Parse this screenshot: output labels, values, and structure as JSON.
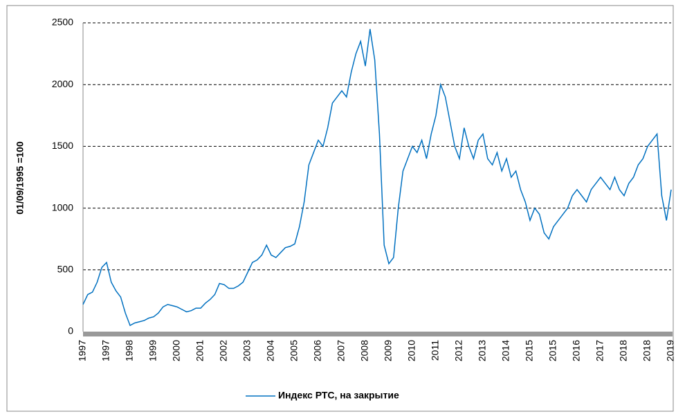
{
  "chart_data": {
    "type": "line",
    "y_label": "01/09/1995 =100",
    "categories": [
      "1997",
      null,
      null,
      null,
      null,
      "1997",
      null,
      null,
      null,
      null,
      "1998",
      null,
      null,
      null,
      null,
      "1999",
      null,
      null,
      null,
      null,
      "2000",
      null,
      null,
      null,
      null,
      "2001",
      null,
      null,
      null,
      null,
      "2002",
      null,
      null,
      null,
      null,
      "2003",
      null,
      null,
      null,
      null,
      "2004",
      null,
      null,
      null,
      null,
      "2005",
      null,
      null,
      null,
      null,
      "2006",
      null,
      null,
      null,
      null,
      "2007",
      null,
      null,
      null,
      null,
      "2008",
      null,
      null,
      null,
      null,
      "2009",
      null,
      null,
      null,
      null,
      "2010",
      null,
      null,
      null,
      null,
      "2011",
      null,
      null,
      null,
      null,
      "2012",
      null,
      null,
      null,
      null,
      "2013",
      null,
      null,
      null,
      null,
      "2014",
      null,
      null,
      null,
      null,
      "2015",
      null,
      null,
      null,
      null,
      "2015",
      null,
      null,
      null,
      null,
      "2016",
      null,
      null,
      null,
      null,
      "2017",
      null,
      null,
      null,
      null,
      "2018",
      null,
      null,
      null,
      null,
      "2018",
      null,
      null,
      null,
      null,
      "2019"
    ],
    "series": [
      {
        "name": "Индекс РТС, на закрытие",
        "color": "#0070c0",
        "values": [
          220,
          300,
          320,
          400,
          520,
          560,
          400,
          330,
          280,
          150,
          50,
          70,
          80,
          90,
          110,
          120,
          150,
          200,
          220,
          210,
          200,
          180,
          160,
          170,
          190,
          190,
          230,
          260,
          300,
          390,
          380,
          350,
          350,
          370,
          400,
          480,
          560,
          580,
          620,
          700,
          620,
          600,
          640,
          680,
          690,
          710,
          850,
          1050,
          1350,
          1450,
          1550,
          1500,
          1650,
          1850,
          1900,
          1950,
          1900,
          2100,
          2250,
          2350,
          2150,
          2450,
          2200,
          1600,
          700,
          550,
          600,
          1000,
          1300,
          1400,
          1500,
          1450,
          1550,
          1400,
          1600,
          1750,
          2000,
          1900,
          1700,
          1500,
          1400,
          1650,
          1500,
          1400,
          1550,
          1600,
          1400,
          1350,
          1450,
          1300,
          1400,
          1250,
          1300,
          1150,
          1050,
          900,
          1000,
          950,
          800,
          750,
          850,
          900,
          950,
          1000,
          1100,
          1150,
          1100,
          1050,
          1150,
          1200,
          1250,
          1200,
          1150,
          1250,
          1150,
          1100,
          1200,
          1250,
          1350,
          1400,
          1500,
          1550,
          1600,
          1100,
          900,
          1150
        ]
      }
    ],
    "ylim": [
      0,
      2500
    ],
    "yticks": [
      0,
      500,
      1000,
      1500,
      2000,
      2500
    ],
    "grid": true
  }
}
